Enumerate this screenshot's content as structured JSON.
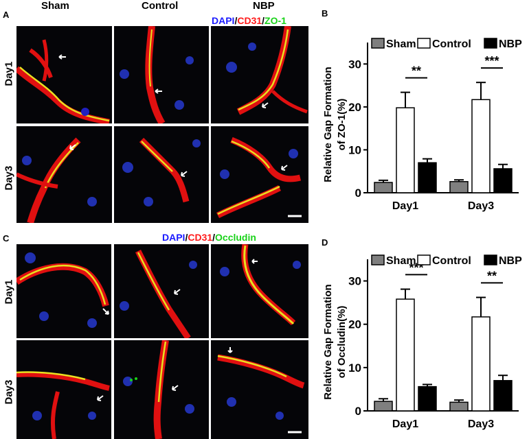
{
  "figure": {
    "columns": [
      "Sham",
      "Control",
      "NBP"
    ],
    "rows": [
      "Day1",
      "Day3"
    ],
    "panelA": {
      "letter": "A",
      "stain": [
        "DAPI",
        "/",
        "CD31",
        "/",
        "ZO-1"
      ]
    },
    "panelB": {
      "letter": "B"
    },
    "panelC": {
      "letter": "C",
      "stain": [
        "DAPI",
        "/",
        "CD31",
        "/",
        "Occludin"
      ]
    },
    "panelD": {
      "letter": "D"
    }
  },
  "colors": {
    "sham": "#7f7f7f",
    "control": "#ffffff",
    "nbp": "#000000",
    "dapi": "#1a1aff",
    "cd31": "#ff1a1a",
    "green": "#19d219"
  },
  "chart_data": [
    {
      "type": "bar",
      "panel": "B",
      "categories": [
        "Day1",
        "Day3"
      ],
      "series": [
        {
          "name": "Sham",
          "values": [
            2.4,
            2.6
          ],
          "errors": [
            0.5,
            0.4
          ]
        },
        {
          "name": "Control",
          "values": [
            19.8,
            21.7
          ],
          "errors": [
            3.6,
            4.0
          ]
        },
        {
          "name": "NBP",
          "values": [
            7.0,
            5.6
          ],
          "errors": [
            0.9,
            1.0
          ]
        }
      ],
      "ylabel_lines": [
        "Relative Gap Formation",
        "of ZO-1(%)"
      ],
      "ylim": [
        0,
        35
      ],
      "yticks": [
        0,
        10,
        20,
        30
      ],
      "legend": "top",
      "significance": [
        {
          "category": "Day1",
          "label": "**"
        },
        {
          "category": "Day3",
          "label": "***"
        }
      ]
    },
    {
      "type": "bar",
      "panel": "D",
      "categories": [
        "Day1",
        "Day3"
      ],
      "series": [
        {
          "name": "Sham",
          "values": [
            2.2,
            2.0
          ],
          "errors": [
            0.6,
            0.5
          ]
        },
        {
          "name": "Control",
          "values": [
            25.8,
            21.7
          ],
          "errors": [
            2.3,
            4.5
          ]
        },
        {
          "name": "NBP",
          "values": [
            5.6,
            7.0
          ],
          "errors": [
            0.5,
            1.2
          ]
        }
      ],
      "ylabel_lines": [
        "Relative Gap Formation",
        "of Occludin(%)"
      ],
      "ylim": [
        0,
        35
      ],
      "yticks": [
        0,
        10,
        20,
        30
      ],
      "legend": "top",
      "significance": [
        {
          "category": "Day1",
          "label": "***"
        },
        {
          "category": "Day3",
          "label": "**"
        }
      ]
    }
  ]
}
